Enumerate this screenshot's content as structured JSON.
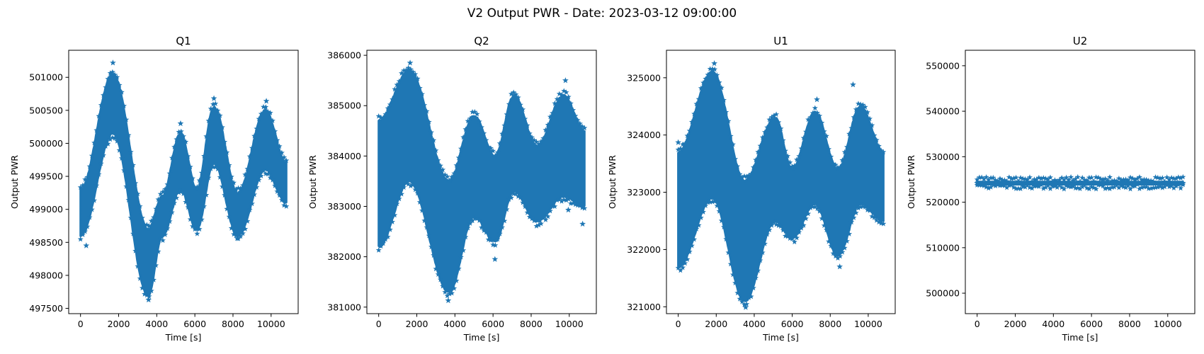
{
  "figure": {
    "title": "V2 Output PWR - Date: 2023-03-12 09:00:00"
  },
  "chart_data": [
    {
      "type": "scatter",
      "title": "Q1",
      "xlabel": "Time [s]",
      "ylabel": "Output PWR",
      "marker": "star",
      "color": "#1f77b4",
      "grid": false,
      "xlim": [
        -620,
        11420
      ],
      "ylim": [
        497420,
        501410
      ],
      "xticks": [
        0,
        2000,
        4000,
        6000,
        8000,
        10000
      ],
      "yticks": [
        497500,
        498000,
        498500,
        499000,
        499500,
        500000,
        500500,
        501000
      ],
      "x_range": [
        0,
        10800
      ],
      "band": [
        [
          0,
          498600,
          499300
        ],
        [
          1700,
          500150,
          501050
        ],
        [
          3550,
          497700,
          498700
        ],
        [
          4300,
          498600,
          499200
        ],
        [
          5250,
          499300,
          500150
        ],
        [
          6100,
          498700,
          499300
        ],
        [
          7000,
          499700,
          500550
        ],
        [
          8250,
          498600,
          499250
        ],
        [
          9700,
          499600,
          500500
        ],
        [
          10800,
          499100,
          499700
        ]
      ],
      "extremes": [
        [
          1700,
          501220
        ],
        [
          3570,
          497630
        ],
        [
          5250,
          500300
        ],
        [
          7000,
          500680
        ],
        [
          9750,
          500640
        ],
        [
          300,
          498450
        ],
        [
          8220,
          498560
        ]
      ]
    },
    {
      "type": "scatter",
      "title": "Q2",
      "xlabel": "Time [s]",
      "ylabel": "Output PWR",
      "marker": "star",
      "color": "#1f77b4",
      "grid": false,
      "xlim": [
        -620,
        11420
      ],
      "ylim": [
        380870,
        386100
      ],
      "xticks": [
        0,
        2000,
        4000,
        6000,
        8000,
        10000
      ],
      "yticks": [
        381000,
        382000,
        383000,
        384000,
        385000,
        386000
      ],
      "x_range": [
        0,
        10800
      ],
      "band": [
        [
          0,
          382200,
          384700
        ],
        [
          1600,
          383500,
          385700
        ],
        [
          3700,
          381300,
          383500
        ],
        [
          5000,
          382800,
          384800
        ],
        [
          6100,
          382300,
          384000
        ],
        [
          7100,
          383300,
          385200
        ],
        [
          8300,
          382700,
          384200
        ],
        [
          9700,
          383200,
          385200
        ],
        [
          10800,
          383000,
          384500
        ]
      ],
      "extremes": [
        [
          1650,
          385850
        ],
        [
          3650,
          381130
        ],
        [
          9800,
          385500
        ],
        [
          6100,
          381950
        ],
        [
          9950,
          382930
        ],
        [
          10700,
          382650
        ]
      ]
    },
    {
      "type": "scatter",
      "title": "U1",
      "xlabel": "Time [s]",
      "ylabel": "Output PWR",
      "marker": "star",
      "color": "#1f77b4",
      "grid": false,
      "xlim": [
        -620,
        11420
      ],
      "ylim": [
        320880,
        325480
      ],
      "xticks": [
        0,
        2000,
        4000,
        6000,
        8000,
        10000
      ],
      "yticks": [
        321000,
        322000,
        323000,
        324000,
        325000
      ],
      "x_range": [
        0,
        10800
      ],
      "band": [
        [
          0,
          321700,
          323700
        ],
        [
          1800,
          322900,
          325100
        ],
        [
          3500,
          321100,
          323200
        ],
        [
          5100,
          322500,
          324300
        ],
        [
          6000,
          322200,
          323400
        ],
        [
          7200,
          322800,
          324400
        ],
        [
          8400,
          321900,
          323400
        ],
        [
          9600,
          322800,
          324500
        ],
        [
          10800,
          322500,
          323700
        ]
      ],
      "extremes": [
        [
          1900,
          325250
        ],
        [
          3550,
          320990
        ],
        [
          0,
          323870
        ],
        [
          7300,
          324620
        ],
        [
          9200,
          324880
        ],
        [
          8500,
          321700
        ]
      ]
    },
    {
      "type": "scatter",
      "title": "U2",
      "xlabel": "Time [s]",
      "ylabel": "Output PWR",
      "marker": "star",
      "color": "#1f77b4",
      "grid": false,
      "xlim": [
        -620,
        11420
      ],
      "ylim": [
        495500,
        553400
      ],
      "xticks": [
        0,
        2000,
        4000,
        6000,
        8000,
        10000
      ],
      "yticks": [
        500000,
        510000,
        520000,
        530000,
        540000,
        550000
      ],
      "x_range": [
        0,
        10800
      ],
      "band": [
        [
          0,
          523900,
          524500
        ],
        [
          10800,
          523900,
          524500
        ]
      ],
      "extremes": []
    }
  ]
}
